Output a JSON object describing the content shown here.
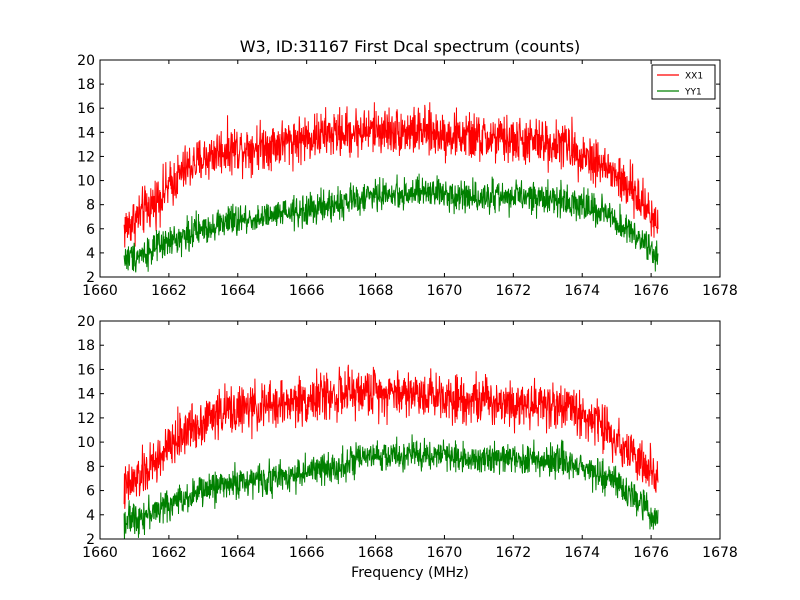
{
  "chart_data": [
    {
      "type": "line",
      "title": "W3, ID:31167 First Dcal spectrum (counts)",
      "xlabel": "",
      "ylabel": "",
      "xlim": [
        1660,
        1678
      ],
      "ylim": [
        2,
        20
      ],
      "xticks": [
        "1660",
        "1662",
        "1664",
        "1666",
        "1668",
        "1670",
        "1672",
        "1674",
        "1676",
        "1678"
      ],
      "yticks": [
        "2",
        "4",
        "6",
        "8",
        "10",
        "12",
        "14",
        "16",
        "18",
        "20"
      ],
      "grid": false,
      "legend": {
        "position": "top-right",
        "entries": [
          "XX1",
          "YY1"
        ]
      },
      "x_range": [
        1660.7,
        1676.2
      ],
      "series": [
        {
          "name": "XX1",
          "color": "#ff0000",
          "noise": 1.5,
          "profile": [
            [
              1660.7,
              6.0
            ],
            [
              1661.5,
              8.0
            ],
            [
              1662.5,
              11.0
            ],
            [
              1663.5,
              12.5
            ],
            [
              1665.0,
              13.0
            ],
            [
              1666.5,
              13.8
            ],
            [
              1668.0,
              14.2
            ],
            [
              1669.5,
              14.0
            ],
            [
              1671.0,
              13.5
            ],
            [
              1672.5,
              13.2
            ],
            [
              1673.5,
              13.0
            ],
            [
              1674.5,
              11.5
            ],
            [
              1675.5,
              9.0
            ],
            [
              1676.2,
              6.5
            ]
          ]
        },
        {
          "name": "YY1",
          "color": "#008000",
          "noise": 1.0,
          "profile": [
            [
              1660.7,
              3.5
            ],
            [
              1661.5,
              4.2
            ],
            [
              1662.5,
              5.5
            ],
            [
              1663.5,
              6.5
            ],
            [
              1665.0,
              7.0
            ],
            [
              1666.5,
              7.8
            ],
            [
              1668.0,
              8.8
            ],
            [
              1669.5,
              9.0
            ],
            [
              1671.0,
              8.7
            ],
            [
              1672.5,
              8.6
            ],
            [
              1673.5,
              8.4
            ],
            [
              1674.5,
              7.5
            ],
            [
              1675.5,
              5.5
            ],
            [
              1676.2,
              3.5
            ]
          ]
        }
      ]
    },
    {
      "type": "line",
      "title": "",
      "xlabel": "Frequency (MHz)",
      "ylabel": "",
      "xlim": [
        1660,
        1678
      ],
      "ylim": [
        2,
        20
      ],
      "xticks": [
        "1660",
        "1662",
        "1664",
        "1666",
        "1668",
        "1670",
        "1672",
        "1674",
        "1676",
        "1678"
      ],
      "yticks": [
        "2",
        "4",
        "6",
        "8",
        "10",
        "12",
        "14",
        "16",
        "18",
        "20"
      ],
      "grid": false,
      "x_range": [
        1660.7,
        1676.2
      ],
      "series": [
        {
          "color": "#ff0000",
          "noise": 1.5,
          "profile": [
            [
              1660.7,
              6.0
            ],
            [
              1661.5,
              8.0
            ],
            [
              1662.5,
              11.0
            ],
            [
              1663.5,
              12.5
            ],
            [
              1665.0,
              13.0
            ],
            [
              1666.5,
              13.8
            ],
            [
              1668.0,
              14.2
            ],
            [
              1669.5,
              14.0
            ],
            [
              1671.0,
              13.5
            ],
            [
              1672.5,
              13.2
            ],
            [
              1673.5,
              13.0
            ],
            [
              1674.5,
              11.5
            ],
            [
              1675.5,
              9.0
            ],
            [
              1676.2,
              6.5
            ]
          ]
        },
        {
          "color": "#008000",
          "noise": 1.0,
          "profile": [
            [
              1660.7,
              3.5
            ],
            [
              1661.5,
              4.2
            ],
            [
              1662.5,
              5.5
            ],
            [
              1663.5,
              6.5
            ],
            [
              1665.0,
              7.0
            ],
            [
              1666.5,
              7.8
            ],
            [
              1668.0,
              8.8
            ],
            [
              1669.5,
              9.0
            ],
            [
              1671.0,
              8.7
            ],
            [
              1672.5,
              8.6
            ],
            [
              1673.5,
              8.4
            ],
            [
              1674.5,
              7.5
            ],
            [
              1675.5,
              5.5
            ],
            [
              1676.2,
              3.5
            ]
          ]
        }
      ]
    }
  ]
}
